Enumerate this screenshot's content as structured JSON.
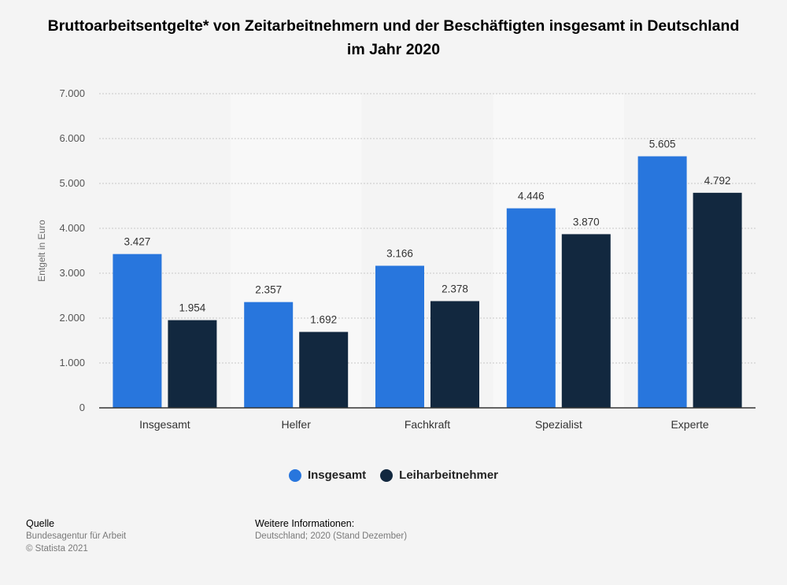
{
  "chart_data": {
    "type": "bar",
    "title": "Bruttoarbeitsentgelte* von Zeitarbeitnehmern und der Beschäftigten insgesamt in Deutschland im Jahr 2020",
    "xlabel": "",
    "ylabel": "Entgelt in Euro",
    "ylim": [
      0,
      7000
    ],
    "yticks": [
      0,
      1000,
      2000,
      3000,
      4000,
      5000,
      6000,
      7000
    ],
    "ytick_labels": [
      "0",
      "1.000",
      "2.000",
      "3.000",
      "4.000",
      "5.000",
      "6.000",
      "7.000"
    ],
    "grid": true,
    "legend_position": "bottom-center",
    "categories": [
      "Insgesamt",
      "Helfer",
      "Fachkraft",
      "Spezialist",
      "Experte"
    ],
    "series": [
      {
        "name": "Insgesamt",
        "color": "#2876dd",
        "values": [
          3427,
          2357,
          3166,
          4446,
          5605
        ],
        "labels": [
          "3.427",
          "2.357",
          "3.166",
          "4.446",
          "5.605"
        ]
      },
      {
        "name": "Leiharbeitnehmer",
        "color": "#12283f",
        "values": [
          1954,
          1692,
          2378,
          3870,
          4792
        ],
        "labels": [
          "1.954",
          "1.692",
          "2.378",
          "3.870",
          "4.792"
        ]
      }
    ]
  },
  "footer": {
    "source_heading": "Quelle",
    "source_lines": [
      "Bundesagentur für Arbeit",
      "© Statista 2021"
    ],
    "info_heading": "Weitere Informationen:",
    "info_lines": [
      "Deutschland; 2020 (Stand Dezember)"
    ]
  }
}
